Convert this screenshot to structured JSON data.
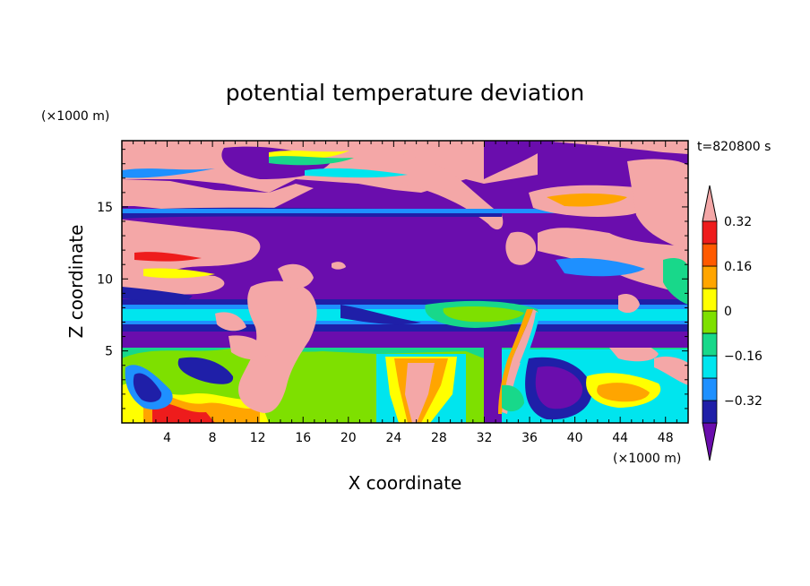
{
  "chart_data": {
    "type": "heatmap",
    "title": "potential temperature deviation",
    "xlabel": "X coordinate",
    "ylabel": "Z coordinate",
    "x_unit": "(×1000 m)",
    "y_unit": "(×1000 m)",
    "time_label": "t=820800 s",
    "xlim": [
      0,
      50
    ],
    "ylim": [
      0,
      19.6
    ],
    "x_ticks": [
      4,
      8,
      12,
      16,
      20,
      24,
      28,
      32,
      36,
      40,
      44,
      48
    ],
    "y_ticks": [
      5,
      10,
      15
    ],
    "colorbar": {
      "levels": [
        -0.4,
        -0.32,
        -0.24,
        -0.16,
        -0.08,
        0,
        0.08,
        0.16,
        0.24,
        0.32,
        0.4
      ],
      "labeled_levels": [
        -0.32,
        -0.16,
        0,
        0.16,
        0.32
      ],
      "tick_labels": [
        "−0.32",
        "−0.16",
        "0",
        "0.16",
        "0.32"
      ],
      "colors": [
        "#6a0dad",
        "#1f1fa8",
        "#1e90ff",
        "#00e5ee",
        "#18d88a",
        "#7ee000",
        "#ffff00",
        "#ffa500",
        "#ff5a00",
        "#ee1c1c",
        "#f4a7a7"
      ]
    }
  }
}
